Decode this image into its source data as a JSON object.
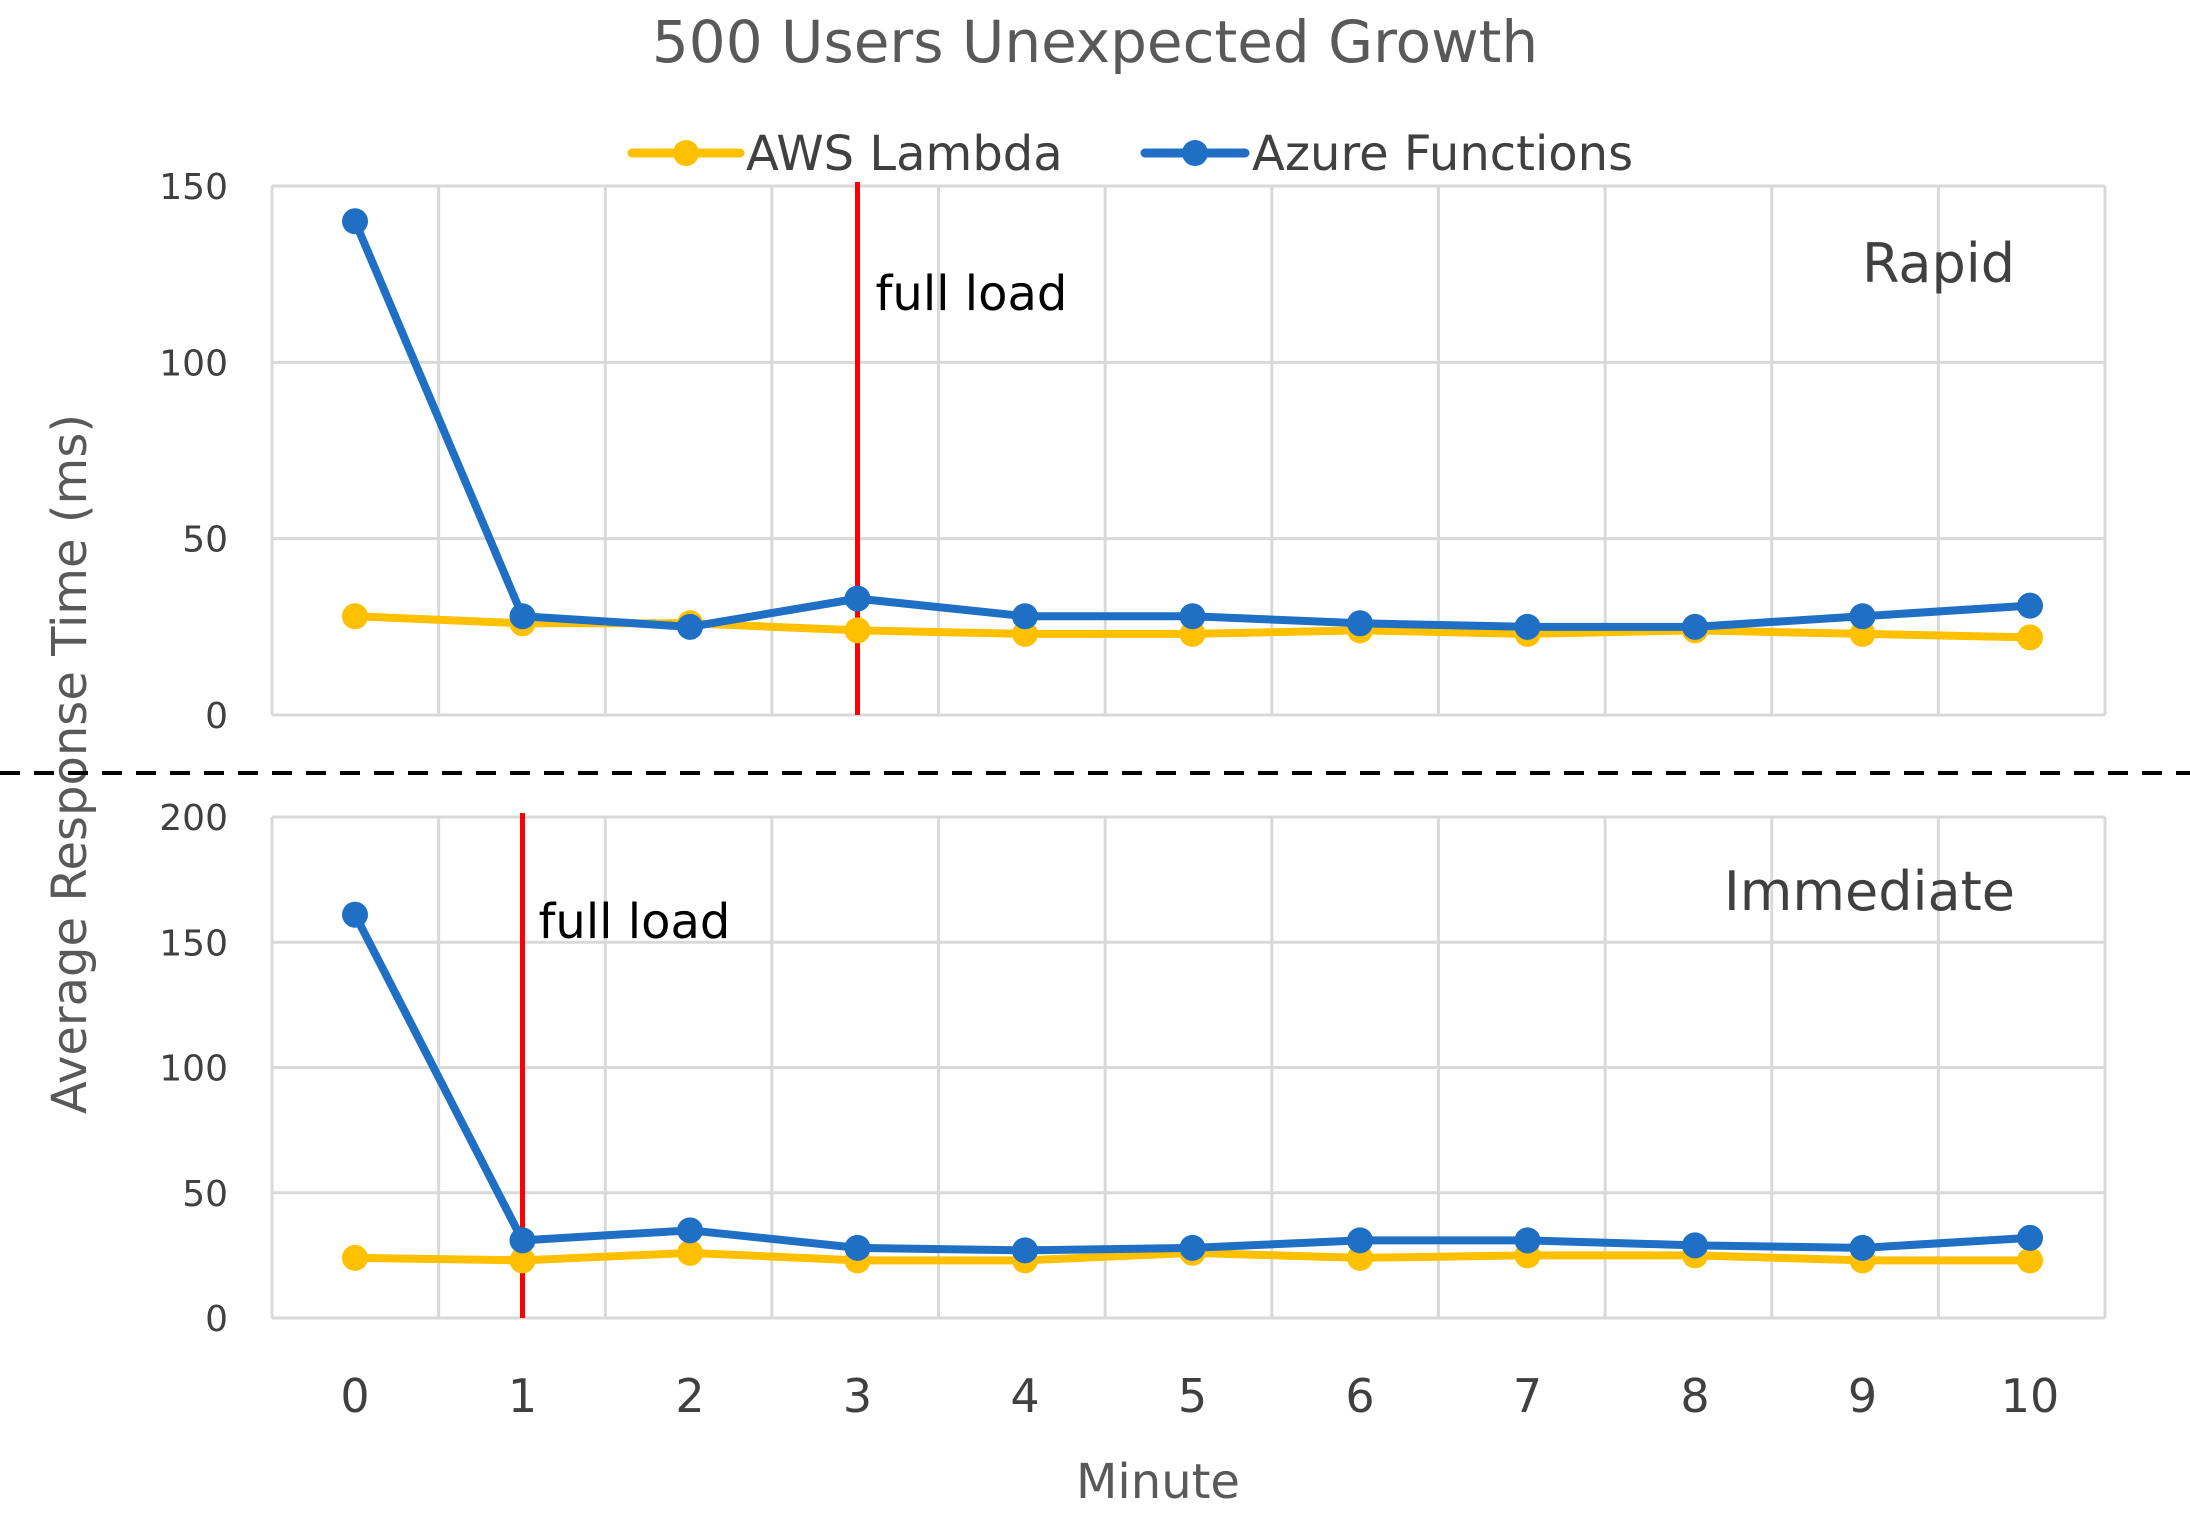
{
  "chart_data": {
    "type": "line",
    "title": "500 Users Unexpected Growth",
    "xlabel": "Minute",
    "ylabel": "Average Response Time (ms)",
    "x": [
      0,
      1,
      2,
      3,
      4,
      5,
      6,
      7,
      8,
      9,
      10
    ],
    "x_tick_labels": [
      "0",
      "1",
      "2",
      "3",
      "4",
      "5",
      "6",
      "7",
      "8",
      "9",
      "10"
    ],
    "legend": [
      "AWS Lambda",
      "Azure Functions"
    ],
    "legend_position": "top",
    "grid": true,
    "colors": {
      "AWS Lambda": "#ffc000",
      "Azure Functions": "#1f6fc5",
      "full_load": "#ff0000",
      "divider": "#000000"
    },
    "panels": [
      {
        "label": "Rapid",
        "ylim": [
          0,
          150
        ],
        "yticks": [
          0,
          50,
          100,
          150
        ],
        "y_tick_labels": [
          "0",
          "50",
          "100",
          "150"
        ],
        "annotation": {
          "text": "full load",
          "x": 3
        },
        "series": [
          {
            "name": "AWS Lambda",
            "values": [
              28,
              26,
              26,
              24,
              23,
              23,
              24,
              23,
              24,
              23,
              22
            ]
          },
          {
            "name": "Azure Functions",
            "values": [
              140,
              28,
              25,
              33,
              28,
              28,
              26,
              25,
              25,
              28,
              31
            ]
          }
        ]
      },
      {
        "label": "Immediate",
        "ylim": [
          0,
          200
        ],
        "yticks": [
          0,
          50,
          100,
          150,
          200
        ],
        "y_tick_labels": [
          "0",
          "50",
          "100",
          "150",
          "200"
        ],
        "annotation": {
          "text": "full load",
          "x": 1
        },
        "series": [
          {
            "name": "AWS Lambda",
            "values": [
              24,
              23,
              26,
              23,
              23,
              26,
              24,
              25,
              25,
              23,
              23
            ]
          },
          {
            "name": "Azure Functions",
            "values": [
              161,
              31,
              35,
              28,
              27,
              28,
              31,
              31,
              29,
              28,
              32
            ]
          }
        ]
      }
    ]
  }
}
